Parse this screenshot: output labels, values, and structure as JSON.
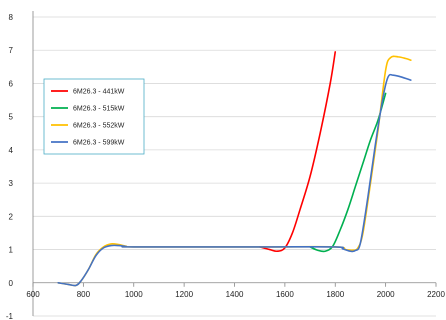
{
  "chart_data": {
    "type": "line",
    "title": "",
    "xlabel": "",
    "ylabel": "",
    "xlim": [
      600,
      2200
    ],
    "ylim": [
      -1,
      8
    ],
    "xticks": [
      600,
      800,
      1000,
      1200,
      1400,
      1600,
      1800,
      2000,
      2200
    ],
    "yticks": [
      -1,
      0,
      1,
      2,
      3,
      4,
      5,
      6,
      7,
      8
    ],
    "grid": "horizontal",
    "legend_position": "upper-left",
    "series": [
      {
        "name": "6M26.3 - 441kW",
        "color": "#ff0000",
        "points": [
          [
            1500,
            1.08
          ],
          [
            1540,
            1.0
          ],
          [
            1570,
            0.95
          ],
          [
            1600,
            1.05
          ],
          [
            1630,
            1.5
          ],
          [
            1660,
            2.2
          ],
          [
            1700,
            3.2
          ],
          [
            1740,
            4.5
          ],
          [
            1780,
            6.0
          ],
          [
            1800,
            6.95
          ]
        ]
      },
      {
        "name": "6M26.3 - 515kW",
        "color": "#00b050",
        "points": [
          [
            1700,
            1.08
          ],
          [
            1730,
            0.98
          ],
          [
            1760,
            0.95
          ],
          [
            1790,
            1.1
          ],
          [
            1820,
            1.6
          ],
          [
            1850,
            2.2
          ],
          [
            1880,
            2.9
          ],
          [
            1910,
            3.6
          ],
          [
            1940,
            4.3
          ],
          [
            1970,
            4.9
          ],
          [
            2000,
            5.7
          ]
        ]
      },
      {
        "name": "6M26.3 - 552kW",
        "color": "#ffc000",
        "points": [
          [
            700,
            0.0
          ],
          [
            740,
            -0.05
          ],
          [
            770,
            -0.08
          ],
          [
            790,
            0.05
          ],
          [
            820,
            0.4
          ],
          [
            850,
            0.85
          ],
          [
            880,
            1.08
          ],
          [
            910,
            1.17
          ],
          [
            940,
            1.15
          ],
          [
            970,
            1.1
          ],
          [
            1000,
            1.08
          ],
          [
            1500,
            1.08
          ],
          [
            1800,
            1.08
          ],
          [
            1840,
            1.0
          ],
          [
            1870,
            0.98
          ],
          [
            1890,
            1.05
          ],
          [
            1910,
            1.5
          ],
          [
            1940,
            3.0
          ],
          [
            1970,
            4.6
          ],
          [
            2000,
            6.4
          ],
          [
            2020,
            6.78
          ],
          [
            2050,
            6.8
          ],
          [
            2080,
            6.75
          ],
          [
            2100,
            6.7
          ]
        ]
      },
      {
        "name": "6M26.3 - 599kW",
        "color": "#4472c4",
        "points": [
          [
            700,
            0.0
          ],
          [
            740,
            -0.05
          ],
          [
            770,
            -0.08
          ],
          [
            790,
            0.05
          ],
          [
            820,
            0.4
          ],
          [
            850,
            0.82
          ],
          [
            880,
            1.05
          ],
          [
            910,
            1.12
          ],
          [
            940,
            1.12
          ],
          [
            970,
            1.09
          ],
          [
            1000,
            1.08
          ],
          [
            1500,
            1.08
          ],
          [
            1800,
            1.08
          ],
          [
            1830,
            1.02
          ],
          [
            1860,
            0.95
          ],
          [
            1880,
            0.97
          ],
          [
            1900,
            1.2
          ],
          [
            1930,
            2.6
          ],
          [
            1960,
            4.2
          ],
          [
            1990,
            5.6
          ],
          [
            2010,
            6.2
          ],
          [
            2030,
            6.25
          ],
          [
            2060,
            6.2
          ],
          [
            2100,
            6.1
          ]
        ]
      }
    ]
  }
}
